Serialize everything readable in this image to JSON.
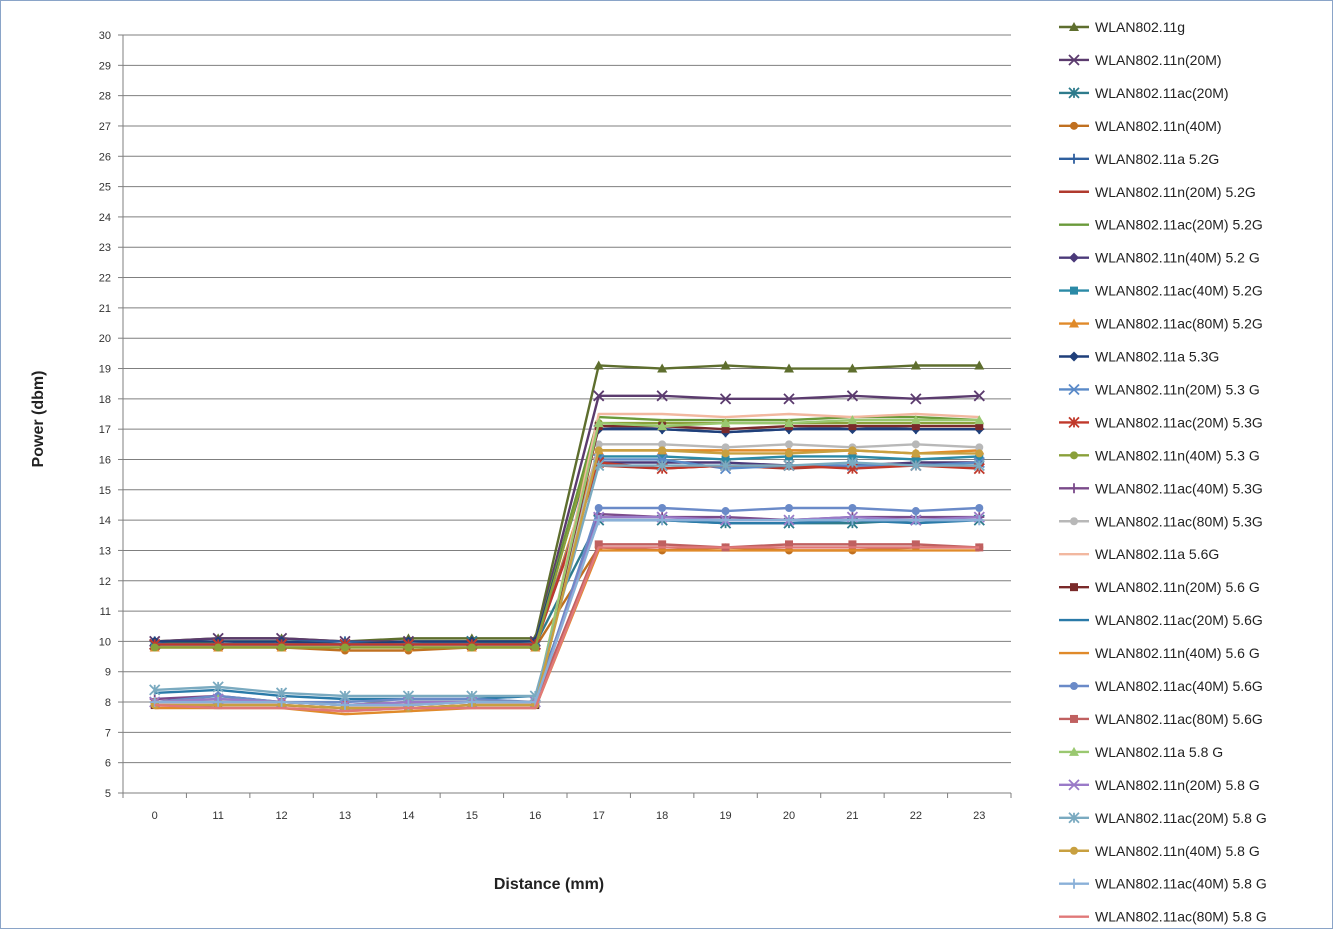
{
  "chart_data": {
    "type": "line",
    "title": "",
    "xlabel": "Distance (mm)",
    "ylabel": "Power (dbm)",
    "ylim": [
      5,
      30
    ],
    "yticks": [
      5,
      6,
      7,
      8,
      9,
      10,
      11,
      12,
      13,
      14,
      15,
      16,
      17,
      18,
      19,
      20,
      21,
      22,
      23,
      24,
      25,
      26,
      27,
      28,
      29,
      30
    ],
    "categories": [
      "0",
      "11",
      "12",
      "13",
      "14",
      "15",
      "16",
      "17",
      "18",
      "19",
      "20",
      "21",
      "22",
      "23"
    ],
    "grid": "horizontal",
    "legend": "right",
    "series": [
      {
        "name": "WLAN802.11g",
        "color": "#5e6e2e",
        "marker": "triangle",
        "values": [
          10.0,
          10.1,
          10.1,
          10.0,
          10.1,
          10.1,
          10.1,
          19.1,
          19.0,
          19.1,
          19.0,
          19.0,
          19.1,
          19.1
        ]
      },
      {
        "name": "WLAN802.11n(20M)",
        "color": "#5b3b6e",
        "marker": "x",
        "values": [
          10.0,
          10.1,
          10.1,
          10.0,
          10.0,
          10.0,
          10.0,
          18.1,
          18.1,
          18.0,
          18.0,
          18.1,
          18.0,
          18.1
        ]
      },
      {
        "name": "WLAN802.11ac(20M)",
        "color": "#2e7b8c",
        "marker": "star",
        "values": [
          9.9,
          9.9,
          9.9,
          9.9,
          9.9,
          10.0,
          9.9,
          14.0,
          14.0,
          13.9,
          13.9,
          13.9,
          14.0,
          14.0
        ]
      },
      {
        "name": "WLAN802.11n(40M)",
        "color": "#c07020",
        "marker": "circle",
        "values": [
          9.8,
          9.8,
          9.8,
          9.7,
          9.7,
          9.8,
          9.8,
          13.1,
          13.0,
          13.1,
          13.0,
          13.0,
          13.1,
          13.1
        ]
      },
      {
        "name": "WLAN802.11a 5.2G",
        "color": "#2f5f9e",
        "marker": "plus",
        "values": [
          10.0,
          9.9,
          10.0,
          10.0,
          9.9,
          10.0,
          10.0,
          17.1,
          17.0,
          16.9,
          17.0,
          17.1,
          17.0,
          17.0
        ]
      },
      {
        "name": "WLAN802.11n(20M) 5.2G",
        "color": "#b03a2e",
        "marker": "none",
        "values": [
          9.9,
          9.9,
          9.9,
          9.9,
          9.9,
          9.9,
          9.9,
          15.8,
          15.7,
          15.8,
          15.7,
          15.8,
          15.8,
          15.8
        ]
      },
      {
        "name": "WLAN802.11ac(20M) 5.2G",
        "color": "#6a9a3a",
        "marker": "none",
        "values": [
          9.9,
          10.0,
          10.0,
          9.9,
          10.0,
          10.0,
          10.0,
          17.4,
          17.3,
          17.3,
          17.3,
          17.4,
          17.4,
          17.3
        ]
      },
      {
        "name": "WLAN802.11n(40M) 5.2 G",
        "color": "#4b3a7a",
        "marker": "diamond",
        "values": [
          9.9,
          9.9,
          9.9,
          9.9,
          9.9,
          9.9,
          9.9,
          15.9,
          15.9,
          15.9,
          15.8,
          15.8,
          15.9,
          15.9
        ]
      },
      {
        "name": "WLAN802.11ac(40M) 5.2G",
        "color": "#2b8aa6",
        "marker": "square",
        "values": [
          9.9,
          9.9,
          9.9,
          9.9,
          9.9,
          9.9,
          9.9,
          16.1,
          16.1,
          16.0,
          16.1,
          16.1,
          16.0,
          16.1
        ]
      },
      {
        "name": "WLAN802.11ac(80M) 5.2G",
        "color": "#e08a2a",
        "marker": "triangle",
        "values": [
          9.8,
          9.8,
          9.8,
          9.8,
          9.8,
          9.8,
          9.8,
          16.3,
          16.3,
          16.3,
          16.3,
          16.3,
          16.2,
          16.3
        ]
      },
      {
        "name": "WLAN802.11a 5.3G",
        "color": "#1f3f7a",
        "marker": "diamond",
        "values": [
          10.0,
          10.0,
          10.0,
          9.9,
          10.0,
          10.0,
          10.0,
          17.0,
          17.0,
          16.9,
          17.0,
          17.0,
          17.0,
          17.0
        ]
      },
      {
        "name": "WLAN802.11n(20M) 5.3 G",
        "color": "#5a8ac8",
        "marker": "x",
        "values": [
          9.9,
          9.9,
          9.9,
          9.9,
          9.9,
          9.9,
          9.9,
          16.0,
          16.0,
          15.7,
          15.8,
          15.8,
          15.8,
          15.9
        ]
      },
      {
        "name": "WLAN802.11ac(20M) 5.3G",
        "color": "#c0392b",
        "marker": "star",
        "values": [
          9.9,
          9.9,
          9.9,
          9.9,
          9.9,
          9.9,
          9.9,
          15.9,
          15.7,
          15.8,
          15.8,
          15.7,
          15.8,
          15.7
        ]
      },
      {
        "name": "WLAN802.11n(40M) 5.3 G",
        "color": "#8aa03a",
        "marker": "circle",
        "values": [
          9.8,
          9.8,
          9.8,
          9.8,
          9.8,
          9.8,
          9.8,
          17.2,
          17.2,
          17.2,
          17.2,
          17.2,
          17.2,
          17.2
        ]
      },
      {
        "name": "WLAN802.11ac(40M) 5.3G",
        "color": "#7a4a8a",
        "marker": "plus",
        "values": [
          8.1,
          8.2,
          8.0,
          7.9,
          8.0,
          8.0,
          8.0,
          14.2,
          14.1,
          14.1,
          14.0,
          14.1,
          14.1,
          14.1
        ]
      },
      {
        "name": "WLAN802.11ac(80M) 5.3G",
        "color": "#b8b8b8",
        "marker": "circle",
        "values": [
          8.0,
          8.0,
          8.0,
          7.9,
          7.9,
          8.0,
          8.0,
          16.5,
          16.5,
          16.4,
          16.5,
          16.4,
          16.5,
          16.4
        ]
      },
      {
        "name": "WLAN802.11a 5.6G",
        "color": "#f2b8a0",
        "marker": "none",
        "values": [
          7.8,
          7.9,
          7.9,
          7.7,
          7.8,
          7.9,
          7.9,
          17.5,
          17.5,
          17.4,
          17.5,
          17.4,
          17.5,
          17.4
        ]
      },
      {
        "name": "WLAN802.11n(20M) 5.6 G",
        "color": "#7a2a2a",
        "marker": "square",
        "values": [
          7.9,
          7.9,
          7.9,
          7.8,
          7.8,
          7.9,
          7.9,
          17.1,
          17.1,
          17.0,
          17.1,
          17.1,
          17.1,
          17.1
        ]
      },
      {
        "name": "WLAN802.11ac(20M) 5.6G",
        "color": "#2a7aa8",
        "marker": "none",
        "values": [
          8.3,
          8.4,
          8.2,
          8.1,
          8.1,
          8.1,
          8.2,
          14.0,
          14.0,
          13.9,
          13.9,
          14.0,
          13.9,
          14.0
        ]
      },
      {
        "name": "WLAN802.11n(40M) 5.6 G",
        "color": "#e08a2a",
        "marker": "none",
        "values": [
          7.8,
          7.8,
          7.8,
          7.6,
          7.7,
          7.8,
          7.8,
          13.0,
          13.0,
          13.0,
          13.0,
          13.0,
          13.0,
          13.0
        ]
      },
      {
        "name": "WLAN802.11ac(40M) 5.6G",
        "color": "#6a8ac8",
        "marker": "circle",
        "values": [
          8.0,
          8.2,
          8.0,
          8.0,
          8.1,
          8.1,
          8.0,
          14.4,
          14.4,
          14.3,
          14.4,
          14.4,
          14.3,
          14.4
        ]
      },
      {
        "name": "WLAN802.11ac(80M) 5.6G",
        "color": "#c06060",
        "marker": "square",
        "values": [
          8.0,
          8.0,
          8.0,
          7.9,
          7.9,
          8.0,
          8.0,
          13.2,
          13.2,
          13.1,
          13.2,
          13.2,
          13.2,
          13.1
        ]
      },
      {
        "name": "WLAN802.11a 5.8 G",
        "color": "#9ac870",
        "marker": "triangle",
        "values": [
          8.0,
          8.1,
          8.0,
          7.9,
          8.0,
          8.0,
          8.0,
          17.2,
          17.1,
          17.2,
          17.2,
          17.3,
          17.3,
          17.3
        ]
      },
      {
        "name": "WLAN802.11n(20M) 5.8 G",
        "color": "#9a7ac8",
        "marker": "x",
        "values": [
          8.0,
          8.1,
          8.0,
          7.9,
          8.0,
          8.0,
          8.0,
          14.1,
          14.1,
          14.0,
          14.0,
          14.1,
          14.0,
          14.1
        ]
      },
      {
        "name": "WLAN802.11ac(20M) 5.8 G",
        "color": "#7aaac0",
        "marker": "star",
        "values": [
          8.4,
          8.5,
          8.3,
          8.2,
          8.2,
          8.2,
          8.2,
          15.8,
          15.8,
          15.8,
          15.8,
          15.9,
          15.8,
          15.8
        ]
      },
      {
        "name": "WLAN802.11n(40M) 5.8 G",
        "color": "#c8a040",
        "marker": "circle",
        "values": [
          7.9,
          7.9,
          7.9,
          7.8,
          7.8,
          7.9,
          7.9,
          16.3,
          16.3,
          16.2,
          16.2,
          16.3,
          16.2,
          16.2
        ]
      },
      {
        "name": "WLAN802.11ac(40M) 5.8 G",
        "color": "#8ab0d8",
        "marker": "plus",
        "values": [
          8.0,
          8.0,
          8.0,
          7.9,
          7.9,
          8.0,
          8.0,
          14.0,
          14.0,
          14.0,
          14.0,
          14.0,
          14.0,
          14.0
        ]
      },
      {
        "name": "WLAN802.11ac(80M) 5.8 G",
        "color": "#e07878",
        "marker": "none",
        "values": [
          7.9,
          7.8,
          7.8,
          7.7,
          7.8,
          7.8,
          7.8,
          13.1,
          13.1,
          13.1,
          13.1,
          13.1,
          13.1,
          13.1
        ]
      }
    ]
  }
}
